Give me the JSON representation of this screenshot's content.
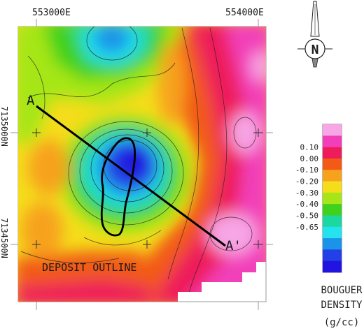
{
  "map": {
    "easting_labels": [
      "553000E",
      "554000E"
    ],
    "northing_labels": [
      "7135000N",
      "7134500N"
    ],
    "profile_start_label": "A",
    "profile_end_label": "A'",
    "deposit_label": "DEPOSIT OUTLINE",
    "north_arrow_label": "N"
  },
  "legend": {
    "title_lines": [
      "BOUGUER",
      "DENSITY",
      "(g/cc)"
    ],
    "ticks": [
      "0.10",
      "0.00",
      "-0.10",
      "-0.20",
      "-0.30",
      "-0.40",
      "-0.50",
      "-0.65"
    ],
    "swatch_colors": [
      "#f7a6e6",
      "#f23fb9",
      "#ee1c5a",
      "#f25a16",
      "#f7a21c",
      "#f5dd1c",
      "#a6e619",
      "#3fd11c",
      "#1cd7a0",
      "#24e3ee",
      "#1a93e8",
      "#2240e6",
      "#2214e0"
    ]
  },
  "colors": {
    "frame": "#9a9a9a",
    "profile_line": "#000000",
    "deposit_outline": "#000000"
  }
}
